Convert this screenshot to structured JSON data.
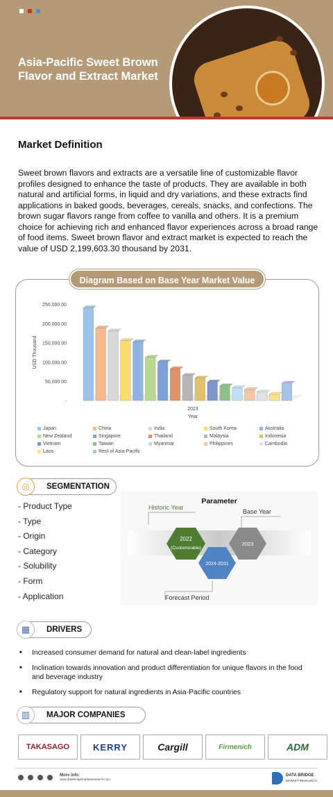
{
  "header": {
    "title": "Asia-Pacific Sweet Brown Flavor and Extract Market",
    "dot_colors": [
      "#ffffff",
      "#c0392b",
      "#4a90c8"
    ]
  },
  "definition": {
    "heading": "Market Definition",
    "body": "Sweet brown flavors and extracts are a versatile line of customizable flavor profiles designed to enhance the taste of products. They are available in both natural and artificial forms, in liquid and dry variations, and these extracts find applications in baked goods, beverages, cereals, snacks, and confections. The brown sugar flavors range from coffee to vanilla and others. It is a premium choice for achieving rich and enhanced flavor experiences across a broad range of food items. Sweet brown flavor and extract market is expected to reach the value of USD 2,199,603.30 thousand by 2031."
  },
  "diagram": {
    "label": "Diagram Based on Base Year Market Value"
  },
  "chart_data": {
    "type": "bar",
    "categories": [
      "2023"
    ],
    "xlabel": "Year",
    "ylabel": "USD Thousand",
    "ylim": [
      0,
      250000
    ],
    "yticks": [
      "250,000.00",
      "200,000.00",
      "150,000.00",
      "100,000.00",
      "50,000.00",
      "-"
    ],
    "series": [
      {
        "name": "Japan",
        "values": [
          240000
        ],
        "color": "#9cc3ea"
      },
      {
        "name": "China",
        "values": [
          188000
        ],
        "color": "#f6b98c"
      },
      {
        "name": "India",
        "values": [
          180000
        ],
        "color": "#d7d7d7"
      },
      {
        "name": "South Korea",
        "values": [
          155000
        ],
        "color": "#fbd96b"
      },
      {
        "name": "Australia",
        "values": [
          152000
        ],
        "color": "#8fb4e3"
      },
      {
        "name": "New Zealand",
        "values": [
          112000
        ],
        "color": "#b5d98f"
      },
      {
        "name": "Singapore",
        "values": [
          100000
        ],
        "color": "#7fa2d6"
      },
      {
        "name": "Thailand",
        "values": [
          82000
        ],
        "color": "#e0926a"
      },
      {
        "name": "Malaysia",
        "values": [
          65000
        ],
        "color": "#b5b5b5"
      },
      {
        "name": "Indonesia",
        "values": [
          58000
        ],
        "color": "#e3c06e"
      },
      {
        "name": "Vietnam",
        "values": [
          48000
        ],
        "color": "#7e95c9"
      },
      {
        "name": "Taiwan",
        "values": [
          38000
        ],
        "color": "#8fc08c"
      },
      {
        "name": "Myanmar",
        "values": [
          33000
        ],
        "color": "#bfe0f2"
      },
      {
        "name": "Philippines",
        "values": [
          28000
        ],
        "color": "#f4c7a4"
      },
      {
        "name": "Cambodia",
        "values": [
          22000
        ],
        "color": "#e2e2e2"
      },
      {
        "name": "Laos",
        "values": [
          16000
        ],
        "color": "#fbe38a"
      },
      {
        "name": "Rest of Asia-Pacific",
        "values": [
          45000
        ],
        "color": "#a8c4ea"
      }
    ]
  },
  "segmentation": {
    "label": "SEGMENTATION",
    "items": [
      "Product Type",
      "Type",
      "Origin",
      "Category",
      "Solubility",
      "Form",
      "Application"
    ]
  },
  "parameter": {
    "title": "Parameter",
    "historic_label": "Historic Year",
    "base_label": "Base Year",
    "forecast_label": "Forecast Period",
    "historic_value": "2022",
    "historic_sub": "(Customizable)",
    "forecast_value": "2024-2031",
    "base_value": "2023"
  },
  "drivers": {
    "label": "DRIVERS",
    "items": [
      "Increased consumer demand for natural and clean-label ingredients",
      "Inclination towards innovation and product differentiation for unique flavors in the food and beverage industry",
      "Regulatory support for natural ingredients in Asia-Pacific countries"
    ]
  },
  "companies": {
    "label": "MAJOR COMPANIES",
    "items": [
      "TAKASAGO",
      "KERRY",
      "Cargill",
      "Firmenich",
      "ADM"
    ],
    "colors": [
      "#9b1c2c",
      "#1d3e8c",
      "#1a1a1a",
      "#5aa03c",
      "#2b6b3a"
    ]
  },
  "footer": {
    "more_info": "More Info:",
    "url": "www.databridgemarketresearch.com",
    "brand_line1": "DATA BRIDGE",
    "brand_line2": "MARKET RESEARCH"
  },
  "theme": {
    "accent": "#b59a77",
    "red": "#c0392b"
  }
}
